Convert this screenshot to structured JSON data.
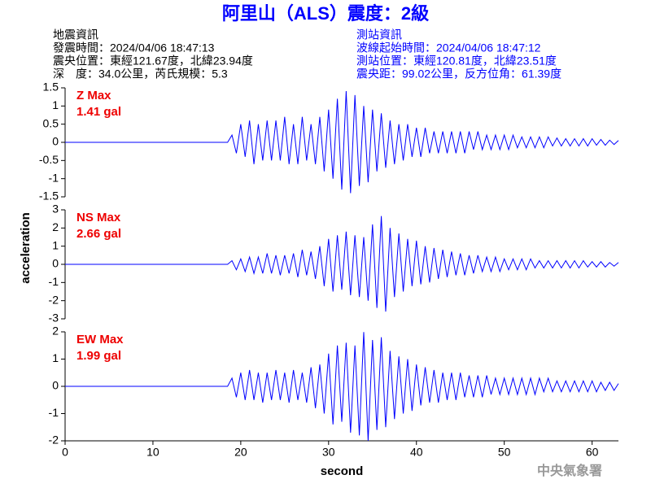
{
  "header": {
    "title": "阿里山（ALS）震度：2級",
    "left": [
      "地震資訊",
      "發震時間：2024/04/06 18:47:13",
      "震央位置：東經121.67度，北緯23.94度",
      "深　度：34.0公里，芮氏規模：5.3"
    ],
    "right": [
      "測站資訊",
      "波線起始時間：2024/04/06 18:47:12",
      "測站位置：東經120.81度，北緯23.51度",
      "震央距：99.02公里，反方位角：61.39度"
    ]
  },
  "footer": "中央氣象署",
  "chart_data": [
    {
      "type": "line",
      "annotation": [
        "Z Max",
        "1.41 gal"
      ],
      "color": "#0000ff",
      "xlim": [
        0,
        63
      ],
      "ylim": [
        -1.5,
        1.5
      ],
      "yticks": [
        -1.5,
        -1,
        -0.5,
        0,
        0.5,
        1,
        1.5
      ],
      "x": [
        0,
        0.5,
        1,
        1.5,
        2,
        2.5,
        3,
        3.5,
        4,
        4.5,
        5,
        5.5,
        6,
        6.5,
        7,
        7.5,
        8,
        8.5,
        9,
        9.5,
        10,
        10.5,
        11,
        11.5,
        12,
        12.5,
        13,
        13.5,
        14,
        14.5,
        15,
        15.5,
        16,
        16.5,
        17,
        17.5,
        18,
        18.5,
        19,
        19.5,
        20,
        20.5,
        21,
        21.5,
        22,
        22.5,
        23,
        23.5,
        24,
        24.5,
        25,
        25.5,
        26,
        26.5,
        27,
        27.5,
        28,
        28.5,
        29,
        29.5,
        30,
        30.5,
        31,
        31.5,
        32,
        32.5,
        33,
        33.5,
        34,
        34.5,
        35,
        35.5,
        36,
        36.5,
        37,
        37.5,
        38,
        38.5,
        39,
        39.5,
        40,
        40.5,
        41,
        41.5,
        42,
        42.5,
        43,
        43.5,
        44,
        44.5,
        45,
        45.5,
        46,
        46.5,
        47,
        47.5,
        48,
        48.5,
        49,
        49.5,
        50,
        50.5,
        51,
        51.5,
        52,
        52.5,
        53,
        53.5,
        54,
        54.5,
        55,
        55.5,
        56,
        56.5,
        57,
        57.5,
        58,
        58.5,
        59,
        59.5,
        60,
        60.5,
        61,
        61.5,
        62,
        62.5,
        63
      ],
      "values": [
        0,
        0,
        0,
        0,
        0,
        0,
        0,
        0,
        0,
        0,
        0,
        0,
        0,
        0,
        0,
        0,
        0,
        0,
        0,
        0,
        0,
        0,
        0,
        0,
        0,
        0,
        0,
        0,
        0,
        0,
        0,
        0,
        0,
        0,
        0,
        0,
        0,
        0,
        0.2,
        -0.3,
        0.5,
        -0.4,
        0.6,
        -0.6,
        0.5,
        -0.5,
        0.6,
        -0.5,
        0.6,
        -0.5,
        0.7,
        -0.6,
        0.5,
        -0.6,
        0.7,
        -0.5,
        0.5,
        -0.6,
        0.7,
        -0.8,
        0.9,
        -1.0,
        1.2,
        -1.3,
        1.41,
        -1.4,
        1.3,
        -1.2,
        1.0,
        -1.1,
        0.9,
        -0.8,
        0.8,
        -0.7,
        0.6,
        -0.6,
        0.5,
        -0.5,
        0.5,
        -0.4,
        0.4,
        -0.4,
        0.4,
        -0.3,
        0.3,
        -0.3,
        0.3,
        -0.3,
        0.3,
        -0.3,
        0.3,
        -0.3,
        0.3,
        -0.2,
        0.3,
        -0.2,
        0.2,
        -0.2,
        0.2,
        -0.2,
        0.2,
        -0.2,
        0.2,
        -0.15,
        0.15,
        -0.15,
        0.15,
        -0.15,
        0.15,
        -0.15,
        0.15,
        -0.1,
        0.12,
        -0.1,
        0.1,
        -0.1,
        0.1,
        -0.1,
        0.1,
        -0.1,
        0.1,
        -0.08,
        0.08,
        -0.08,
        0.06,
        -0.06,
        0.05
      ]
    },
    {
      "type": "line",
      "annotation": [
        "NS Max",
        "2.66 gal"
      ],
      "color": "#0000ff",
      "ylabel": "acceleration",
      "xlim": [
        0,
        63
      ],
      "ylim": [
        -3,
        3
      ],
      "yticks": [
        -3,
        -2,
        -1,
        0,
        1,
        2,
        3
      ],
      "x": [
        0,
        0.5,
        1,
        1.5,
        2,
        2.5,
        3,
        3.5,
        4,
        4.5,
        5,
        5.5,
        6,
        6.5,
        7,
        7.5,
        8,
        8.5,
        9,
        9.5,
        10,
        10.5,
        11,
        11.5,
        12,
        12.5,
        13,
        13.5,
        14,
        14.5,
        15,
        15.5,
        16,
        16.5,
        17,
        17.5,
        18,
        18.5,
        19,
        19.5,
        20,
        20.5,
        21,
        21.5,
        22,
        22.5,
        23,
        23.5,
        24,
        24.5,
        25,
        25.5,
        26,
        26.5,
        27,
        27.5,
        28,
        28.5,
        29,
        29.5,
        30,
        30.5,
        31,
        31.5,
        32,
        32.5,
        33,
        33.5,
        34,
        34.5,
        35,
        35.5,
        36,
        36.5,
        37,
        37.5,
        38,
        38.5,
        39,
        39.5,
        40,
        40.5,
        41,
        41.5,
        42,
        42.5,
        43,
        43.5,
        44,
        44.5,
        45,
        45.5,
        46,
        46.5,
        47,
        47.5,
        48,
        48.5,
        49,
        49.5,
        50,
        50.5,
        51,
        51.5,
        52,
        52.5,
        53,
        53.5,
        54,
        54.5,
        55,
        55.5,
        56,
        56.5,
        57,
        57.5,
        58,
        58.5,
        59,
        59.5,
        60,
        60.5,
        61,
        61.5,
        62,
        62.5,
        63
      ],
      "values": [
        0,
        0,
        0,
        0,
        0,
        0,
        0,
        0,
        0,
        0,
        0,
        0,
        0,
        0,
        0,
        0,
        0,
        0,
        0,
        0,
        0,
        0,
        0,
        0,
        0,
        0,
        0,
        0,
        0,
        0,
        0,
        0,
        0,
        0,
        0,
        0,
        0,
        0,
        0.2,
        -0.3,
        0.3,
        -0.4,
        0.4,
        -0.5,
        0.4,
        -0.5,
        0.6,
        -0.5,
        0.5,
        -0.6,
        0.5,
        -0.5,
        0.6,
        -0.7,
        0.8,
        -0.6,
        0.7,
        -0.8,
        1.0,
        -1.2,
        1.4,
        -1.5,
        1.6,
        -1.4,
        1.8,
        -1.7,
        1.6,
        -1.8,
        1.5,
        -2.0,
        2.2,
        -2.4,
        2.66,
        -2.6,
        2.0,
        -1.8,
        1.7,
        -1.5,
        1.4,
        -1.2,
        1.3,
        -1.1,
        1.0,
        -1.0,
        0.9,
        -0.8,
        0.8,
        -0.7,
        0.7,
        -0.6,
        0.6,
        -0.6,
        0.5,
        -0.5,
        0.5,
        -0.4,
        0.4,
        -0.4,
        0.4,
        -0.4,
        0.3,
        -0.3,
        0.3,
        -0.3,
        0.3,
        -0.3,
        0.3,
        -0.2,
        0.2,
        -0.2,
        0.2,
        -0.2,
        0.2,
        -0.2,
        0.2,
        -0.2,
        0.2,
        -0.2,
        0.2,
        -0.15,
        0.15,
        -0.15,
        0.15,
        -0.15,
        0.1,
        -0.1,
        0.1
      ]
    },
    {
      "type": "line",
      "annotation": [
        "EW Max",
        "1.99 gal"
      ],
      "color": "#0000ff",
      "xlabel": "second",
      "xlim": [
        0,
        63
      ],
      "xticks": [
        0,
        10,
        20,
        30,
        40,
        50,
        60
      ],
      "ylim": [
        -2,
        2
      ],
      "yticks": [
        -2,
        -1,
        0,
        1,
        2
      ],
      "x": [
        0,
        0.5,
        1,
        1.5,
        2,
        2.5,
        3,
        3.5,
        4,
        4.5,
        5,
        5.5,
        6,
        6.5,
        7,
        7.5,
        8,
        8.5,
        9,
        9.5,
        10,
        10.5,
        11,
        11.5,
        12,
        12.5,
        13,
        13.5,
        14,
        14.5,
        15,
        15.5,
        16,
        16.5,
        17,
        17.5,
        18,
        18.5,
        19,
        19.5,
        20,
        20.5,
        21,
        21.5,
        22,
        22.5,
        23,
        23.5,
        24,
        24.5,
        25,
        25.5,
        26,
        26.5,
        27,
        27.5,
        28,
        28.5,
        29,
        29.5,
        30,
        30.5,
        31,
        31.5,
        32,
        32.5,
        33,
        33.5,
        34,
        34.5,
        35,
        35.5,
        36,
        36.5,
        37,
        37.5,
        38,
        38.5,
        39,
        39.5,
        40,
        40.5,
        41,
        41.5,
        42,
        42.5,
        43,
        43.5,
        44,
        44.5,
        45,
        45.5,
        46,
        46.5,
        47,
        47.5,
        48,
        48.5,
        49,
        49.5,
        50,
        50.5,
        51,
        51.5,
        52,
        52.5,
        53,
        53.5,
        54,
        54.5,
        55,
        55.5,
        56,
        56.5,
        57,
        57.5,
        58,
        58.5,
        59,
        59.5,
        60,
        60.5,
        61,
        61.5,
        62,
        62.5,
        63
      ],
      "values": [
        0,
        0,
        0,
        0,
        0,
        0,
        0,
        0,
        0,
        0,
        0,
        0,
        0,
        0,
        0,
        0,
        0,
        0,
        0,
        0,
        0,
        0,
        0,
        0,
        0,
        0,
        0,
        0,
        0,
        0,
        0,
        0,
        0,
        0,
        0,
        0,
        0,
        0,
        0.3,
        -0.4,
        0.5,
        -0.5,
        0.6,
        -0.5,
        0.5,
        -0.6,
        0.5,
        -0.5,
        0.6,
        -0.5,
        0.5,
        -0.6,
        0.6,
        -0.5,
        0.5,
        -0.6,
        0.7,
        -0.8,
        0.8,
        -1.0,
        1.2,
        -1.4,
        1.5,
        -1.3,
        1.6,
        -1.7,
        1.5,
        -1.8,
        1.99,
        -2.0,
        1.7,
        -1.6,
        1.8,
        -1.5,
        1.3,
        -1.2,
        1.1,
        -1.0,
        1.0,
        -0.9,
        0.8,
        -0.7,
        0.7,
        -0.6,
        0.6,
        -0.6,
        0.5,
        -0.5,
        0.5,
        -0.5,
        0.5,
        -0.4,
        0.4,
        -0.4,
        0.4,
        -0.4,
        0.4,
        -0.3,
        0.3,
        -0.3,
        0.3,
        -0.3,
        0.3,
        -0.3,
        0.3,
        -0.3,
        0.3,
        -0.3,
        0.3,
        -0.2,
        0.3,
        -0.2,
        0.2,
        -0.2,
        0.2,
        -0.2,
        0.2,
        -0.2,
        0.2,
        -0.2,
        0.2,
        -0.2,
        0.15,
        -0.15,
        0.15,
        -0.15,
        0.1
      ]
    }
  ]
}
